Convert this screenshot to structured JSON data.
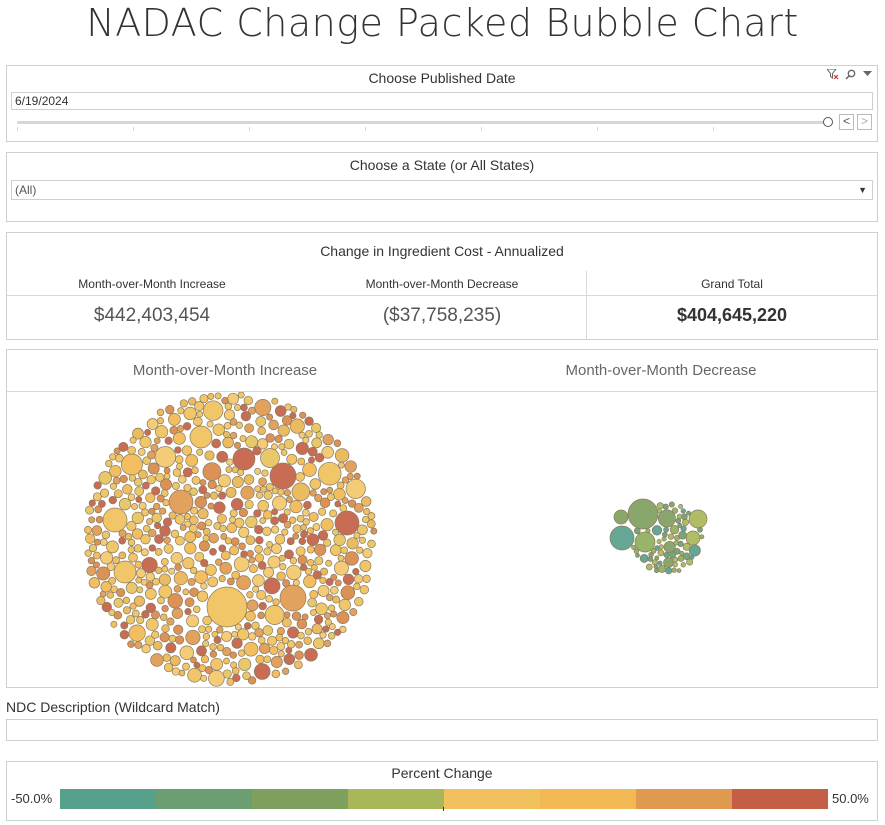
{
  "page": {
    "title": "NADAC Change Packed Bubble Chart"
  },
  "date_filter": {
    "title": "Choose Published Date",
    "value": "6/19/2024",
    "prev_label": "<",
    "next_label": ">"
  },
  "state_filter": {
    "title": "Choose a State (or All States)",
    "value": "(All)",
    "arrow": "▼"
  },
  "summary": {
    "title": "Change in Ingredient Cost - Annualized",
    "increase_label": "Month-over-Month Increase",
    "increase_value": "$442,403,454",
    "decrease_label": "Month-over-Month Decrease",
    "decrease_value": "($37,758,235)",
    "total_label": "Grand Total",
    "total_value": "$404,645,220"
  },
  "ndc_search": {
    "label": "NDC Description (Wildcard Match)",
    "value": ""
  },
  "legend": {
    "title": "Percent Change",
    "min_label": "-50.0%",
    "max_label": "50.0%"
  },
  "colors": {
    "scale": [
      "#57a08c",
      "#6b9e70",
      "#7f9f5f",
      "#a9b758",
      "#f0c15c",
      "#f2b853",
      "#e09a50",
      "#c45f45"
    ]
  },
  "chart_data": {
    "type": "packed_bubble",
    "title": "NADAC Change Packed Bubble Chart",
    "groups": [
      {
        "name": "Month-over-Month Increase",
        "total": 442403454,
        "pct_change_range": [
          0,
          50
        ],
        "approx_bubble_count": 900
      },
      {
        "name": "Month-over-Month Decrease",
        "total": -37758235,
        "pct_change_range": [
          -50,
          0
        ],
        "approx_bubble_count": 90
      }
    ],
    "color_legend": {
      "title": "Percent Change",
      "min": -50.0,
      "max": 50.0,
      "unit": "%"
    }
  }
}
